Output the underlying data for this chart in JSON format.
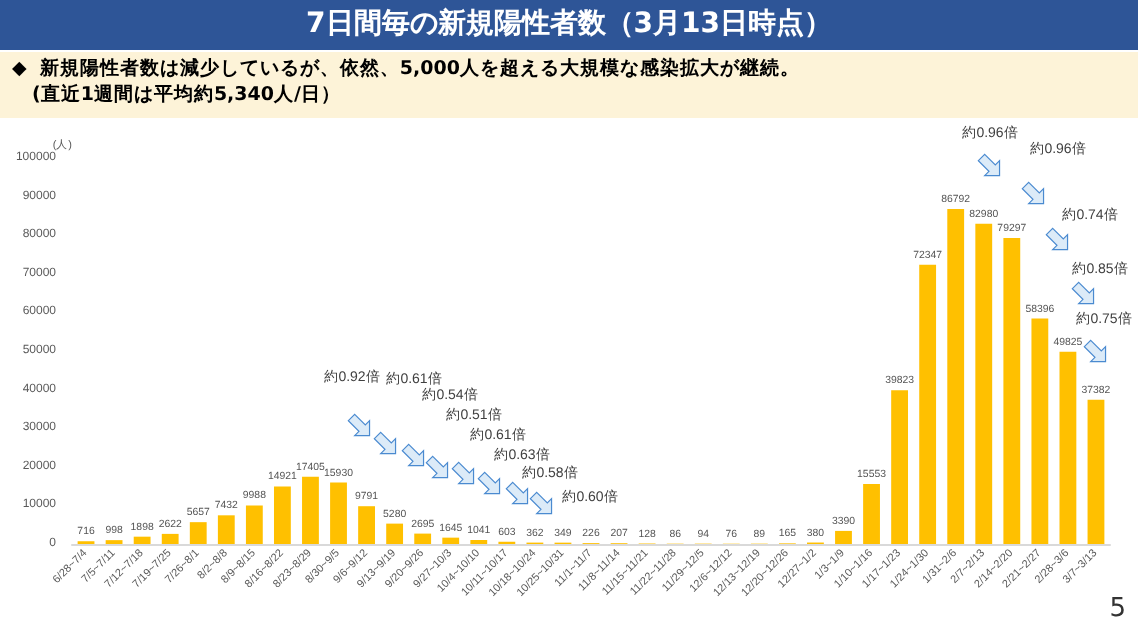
{
  "chart_data": {
    "type": "bar",
    "title": "7日間毎の新規陽性者数（3月13日時点）",
    "subtitle": "◆  新規陽性者数は減少しているが、依然、5,000人を超える大規模な感染拡大が継続。\n　(直近1週間は平均約5,340人/日）",
    "ylabel": "(人)",
    "categories": [
      "6/28~7/4",
      "7/5~7/11",
      "7/12~7/18",
      "7/19~7/25",
      "7/26~8/1",
      "8/2~8/8",
      "8/9~8/15",
      "8/16~8/22",
      "8/23~8/29",
      "8/30~9/5",
      "9/6~9/12",
      "9/13~9/19",
      "9/20~9/26",
      "9/27~10/3",
      "10/4~10/10",
      "10/11~10/17",
      "10/18~10/24",
      "10/25~10/31",
      "11/1~11/7",
      "11/8~11/14",
      "11/15~11/21",
      "11/22~11/28",
      "11/29~12/5",
      "12/6~12/12",
      "12/13~12/19",
      "12/20~12/26",
      "12/27~1/2",
      "1/3~1/9",
      "1/10~1/16",
      "1/17~1/23",
      "1/24~1/30",
      "1/31~2/6",
      "2/7~2/13",
      "2/14~2/20",
      "2/21~2/27",
      "2/28~3/6",
      "3/7~3/13"
    ],
    "values": [
      716,
      998,
      1898,
      2622,
      5657,
      7432,
      9988,
      14921,
      17405,
      15930,
      9791,
      5280,
      2695,
      1645,
      1041,
      603,
      362,
      349,
      226,
      207,
      128,
      86,
      94,
      76,
      89,
      165,
      380,
      3390,
      15553,
      39823,
      72347,
      86792,
      82980,
      79297,
      58396,
      49825,
      37382
    ],
    "color": "#ffc000",
    "data_labels": true,
    "grid": false,
    "ylim": [
      0,
      100000
    ],
    "yticks": [
      0,
      10000,
      20000,
      30000,
      40000,
      50000,
      60000,
      70000,
      80000,
      90000,
      100000
    ],
    "annotations": [
      "約0.92倍",
      "約0.61倍",
      "約0.54倍",
      "約0.51倍",
      "約0.61倍",
      "約0.63倍",
      "約0.58倍",
      "約0.60倍",
      "約0.96倍",
      "約0.96倍",
      "約0.74倍",
      "約0.85倍",
      "約0.75倍",
      "5"
    ]
  }
}
